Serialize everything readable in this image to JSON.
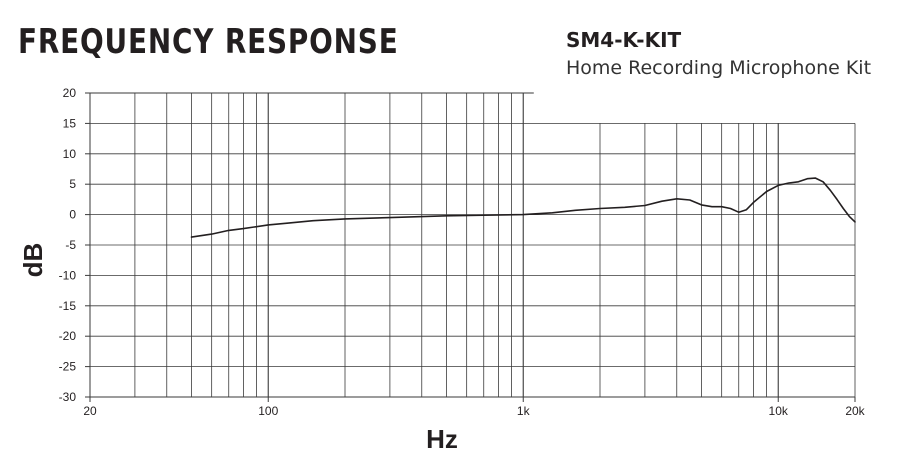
{
  "header": {
    "title": "FREQUENCY RESPONSE",
    "model": "SM4-K-KIT",
    "subtitle": "Home Recording Microphone Kit"
  },
  "chart_data": {
    "type": "line",
    "title": "FREQUENCY RESPONSE",
    "xlabel": "Hz",
    "ylabel": "dB",
    "xscale": "log",
    "xlim": [
      20,
      20000
    ],
    "ylim": [
      -30,
      20
    ],
    "x_ticks": [
      {
        "value": 20,
        "label": "20"
      },
      {
        "value": 100,
        "label": "100"
      },
      {
        "value": 1000,
        "label": "1k"
      },
      {
        "value": 10000,
        "label": "10k"
      },
      {
        "value": 20000,
        "label": "20k"
      }
    ],
    "y_ticks": [
      20,
      15,
      10,
      5,
      0,
      -5,
      -10,
      -15,
      -20,
      -25,
      -30
    ],
    "grid": true,
    "series": [
      {
        "color": "#231f20",
        "points": [
          [
            50,
            -3.7
          ],
          [
            60,
            -3.2
          ],
          [
            70,
            -2.6
          ],
          [
            80,
            -2.3
          ],
          [
            100,
            -1.7
          ],
          [
            120,
            -1.4
          ],
          [
            150,
            -1.0
          ],
          [
            200,
            -0.7
          ],
          [
            300,
            -0.5
          ],
          [
            500,
            -0.2
          ],
          [
            700,
            -0.1
          ],
          [
            1000,
            0.0
          ],
          [
            1300,
            0.3
          ],
          [
            1600,
            0.7
          ],
          [
            2000,
            1.0
          ],
          [
            2500,
            1.2
          ],
          [
            3000,
            1.5
          ],
          [
            3500,
            2.2
          ],
          [
            4000,
            2.6
          ],
          [
            4500,
            2.4
          ],
          [
            5000,
            1.6
          ],
          [
            5500,
            1.3
          ],
          [
            6000,
            1.3
          ],
          [
            6500,
            1.0
          ],
          [
            7000,
            0.4
          ],
          [
            7500,
            0.8
          ],
          [
            8000,
            2.0
          ],
          [
            9000,
            3.8
          ],
          [
            10000,
            4.8
          ],
          [
            11000,
            5.2
          ],
          [
            12000,
            5.4
          ],
          [
            13000,
            5.9
          ],
          [
            14000,
            6.0
          ],
          [
            15000,
            5.4
          ],
          [
            16000,
            4.0
          ],
          [
            17000,
            2.5
          ],
          [
            18000,
            1.0
          ],
          [
            19000,
            -0.3
          ],
          [
            20000,
            -1.2
          ]
        ]
      }
    ]
  }
}
